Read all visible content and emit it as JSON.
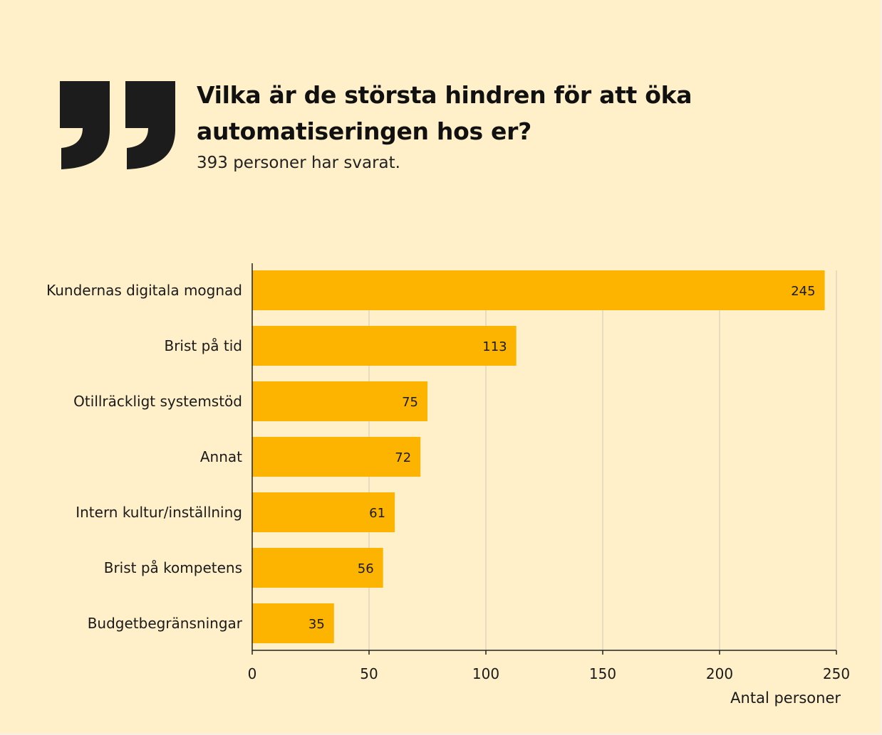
{
  "header": {
    "title": "Vilka är de största hindren för att öka automatiseringen hos er?",
    "subtitle": "393 personer har svarat."
  },
  "icon": "quote-mark-icon",
  "colors": {
    "background": "#fff0c9",
    "bar": "#fcb400",
    "quote": "#1c1c1c",
    "grid": "#cfc8b6",
    "axis": "#222222"
  },
  "chart_data": {
    "type": "bar",
    "orientation": "horizontal",
    "categories": [
      "Kundernas digitala mognad",
      "Brist på tid",
      "Otillräckligt systemstöd",
      "Annat",
      "Intern kultur/inställning",
      "Brist på kompetens",
      "Budgetbegränsningar"
    ],
    "values": [
      245,
      113,
      75,
      72,
      61,
      56,
      35
    ],
    "data_labels": [
      "245",
      "113",
      "75",
      "72",
      "61",
      "56",
      "35"
    ],
    "xlabel": "Antal personer",
    "ylabel": "",
    "xlim": [
      0,
      250
    ],
    "xticks": [
      0,
      50,
      100,
      150,
      200,
      250
    ],
    "grid": "vertical"
  }
}
